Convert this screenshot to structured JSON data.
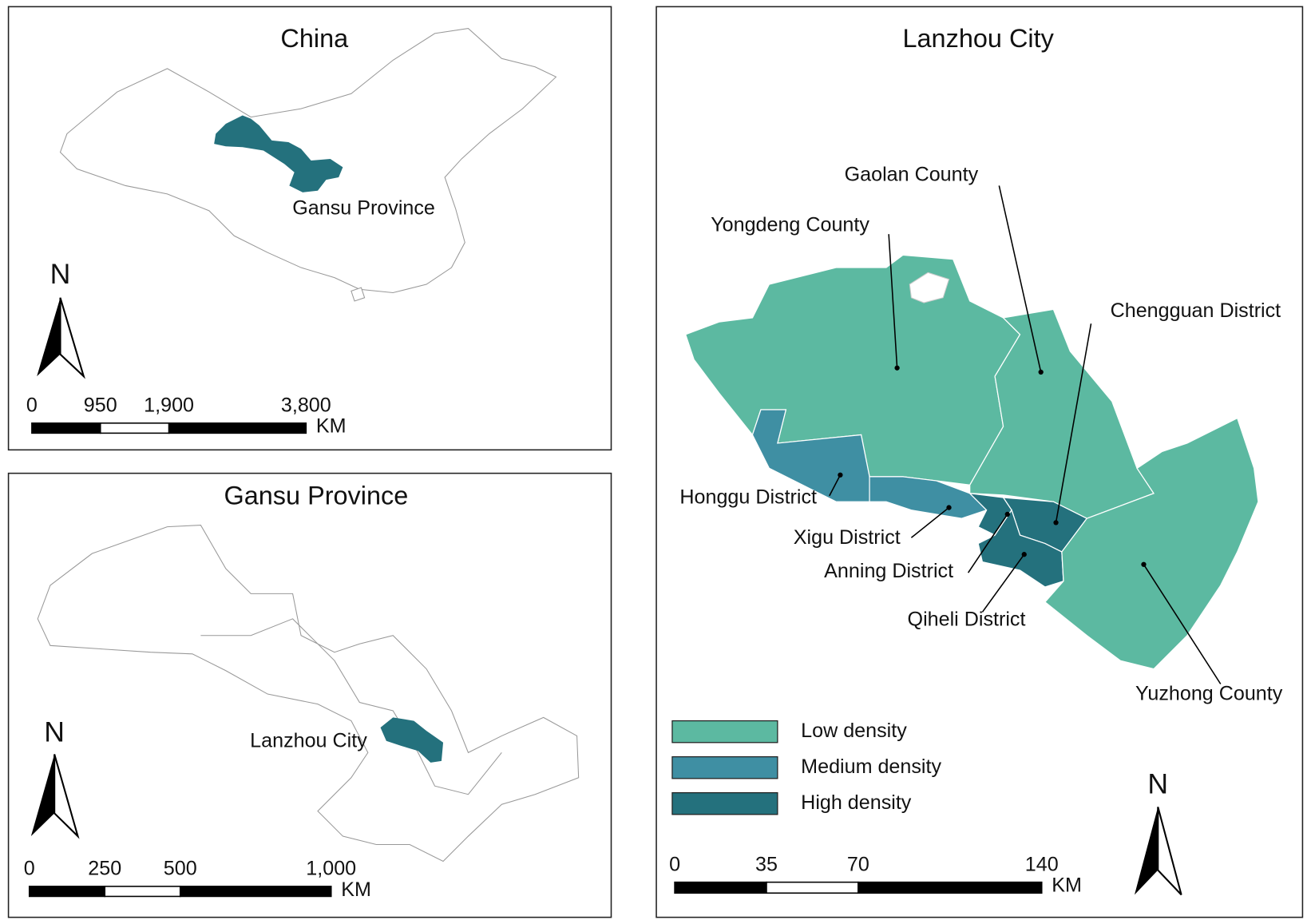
{
  "panels": [
    {
      "title": "China",
      "label": "Gansu Province",
      "north": "N",
      "scale": {
        "ticks": [
          0,
          950,
          {
            "value": 1900,
            "label": "1,900"
          },
          {
            "value": 3800,
            "label": "3,800"
          }
        ],
        "unit": "KM"
      }
    },
    {
      "title": "Gansu Province",
      "label": "Lanzhou City",
      "north": "N",
      "scale": {
        "ticks": [
          0,
          250,
          500,
          {
            "value": 1000,
            "label": "1,000"
          }
        ],
        "unit": "KM"
      }
    },
    {
      "title": "Lanzhou City",
      "north": "N",
      "districts": [
        "Yongdeng County",
        "Gaolan County",
        "Chengguan District",
        "Honggu District",
        "Xigu District",
        "Anning District",
        "Qiheli District",
        "Yuzhong County"
      ],
      "legend": [
        {
          "label": "Low density",
          "color": "#5cb9a1"
        },
        {
          "label": "Medium density",
          "color": "#3f8fa3"
        },
        {
          "label": "High density",
          "color": "#24717d"
        }
      ],
      "scale": {
        "ticks": [
          0,
          35,
          70,
          140
        ],
        "unit": "KM"
      }
    }
  ]
}
